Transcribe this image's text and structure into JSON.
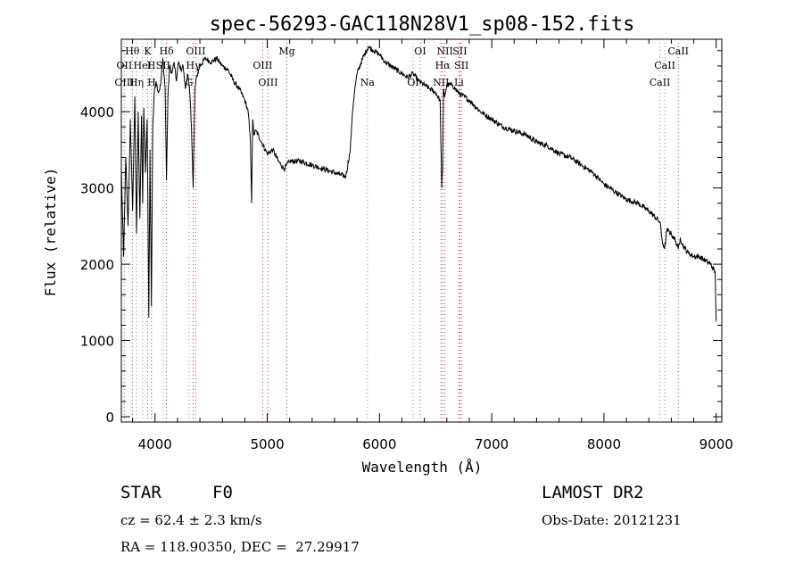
{
  "chart_data": {
    "type": "line",
    "title": "spec-56293-GAC118N28V1_sp08-152.fits",
    "xlabel": "Wavelength (Å)",
    "ylabel": "Flux (relative)",
    "xlim": [
      3700,
      9050
    ],
    "ylim": [
      -70,
      4950
    ],
    "xticks": [
      4000,
      5000,
      6000,
      7000,
      8000,
      9000
    ],
    "yticks": [
      0,
      1000,
      2000,
      3000,
      4000
    ],
    "grid": false,
    "series": [
      {
        "x": [
          3700,
          3720,
          3740,
          3760,
          3780,
          3800,
          3820,
          3835,
          3850,
          3865,
          3880,
          3890,
          3900,
          3915,
          3930,
          3945,
          3955,
          3968,
          3980,
          3995,
          4010,
          4030,
          4050,
          4070,
          4090,
          4102,
          4115,
          4130,
          4150,
          4170,
          4190,
          4210,
          4230,
          4250,
          4270,
          4290,
          4310,
          4325,
          4340,
          4355,
          4370,
          4400,
          4450,
          4500,
          4550,
          4600,
          4650,
          4700,
          4750,
          4800,
          4830,
          4850,
          4861,
          4870,
          4880,
          4900,
          4950,
          5000,
          5050,
          5100,
          5150,
          5200,
          5300,
          5400,
          5500,
          5600,
          5700,
          5740,
          5760,
          5780,
          5800,
          5850,
          5900,
          5950,
          6000,
          6050,
          6100,
          6150,
          6200,
          6250,
          6300,
          6350,
          6400,
          6450,
          6500,
          6540,
          6555,
          6563,
          6570,
          6580,
          6600,
          6650,
          6700,
          6800,
          6900,
          7000,
          7100,
          7200,
          7300,
          7400,
          7500,
          7600,
          7700,
          7800,
          7900,
          8000,
          8100,
          8200,
          8300,
          8400,
          8500,
          8520,
          8540,
          8560,
          8600,
          8640,
          8662,
          8680,
          8700,
          8750,
          8800,
          8850,
          8900,
          8950,
          8990,
          9000
        ],
        "y": [
          3250,
          2100,
          3400,
          2500,
          3900,
          2700,
          4200,
          2400,
          4000,
          2600,
          3950,
          2800,
          4050,
          3200,
          3900,
          1300,
          3500,
          1450,
          3800,
          4300,
          4400,
          4250,
          4350,
          4700,
          4300,
          3100,
          4200,
          4600,
          4500,
          4650,
          4400,
          4650,
          4550,
          4600,
          4300,
          4500,
          4250,
          3800,
          3000,
          4300,
          4450,
          4600,
          4700,
          4650,
          4700,
          4600,
          4550,
          4400,
          4300,
          4150,
          4000,
          3600,
          2800,
          3900,
          3700,
          3750,
          3600,
          3450,
          3500,
          3350,
          3250,
          3350,
          3350,
          3300,
          3250,
          3200,
          3150,
          3500,
          4000,
          4300,
          4500,
          4700,
          4850,
          4800,
          4750,
          4650,
          4600,
          4550,
          4500,
          4450,
          4500,
          4400,
          4350,
          4300,
          4250,
          4150,
          3000,
          3250,
          4300,
          4200,
          4350,
          4350,
          4250,
          4150,
          4000,
          3900,
          3800,
          3750,
          3700,
          3600,
          3550,
          3450,
          3400,
          3300,
          3200,
          3050,
          2950,
          2850,
          2800,
          2700,
          2550,
          2300,
          2200,
          2450,
          2400,
          2300,
          2200,
          2350,
          2250,
          2150,
          2100,
          2100,
          2050,
          2000,
          1900,
          1250
        ]
      }
    ],
    "lines": [
      {
        "label": "Hθ",
        "x": 3798,
        "row": 0,
        "style": "red"
      },
      {
        "label": "K",
        "x": 3934,
        "row": 0,
        "style": "red"
      },
      {
        "label": "Hδ",
        "x": 4102,
        "row": 0,
        "style": "red"
      },
      {
        "label": "OIII",
        "x": 4363,
        "row": 0,
        "style": "red"
      },
      {
        "label": "Mg",
        "x": 5175,
        "row": 0,
        "style": "red"
      },
      {
        "label": "OI",
        "x": 6363,
        "row": 0,
        "style": "red"
      },
      {
        "label": "NII",
        "x": 6583,
        "row": 0,
        "style": "red"
      },
      {
        "label": "SII",
        "x": 6717,
        "row": 0,
        "style": "red"
      },
      {
        "label": "CaII",
        "x": 8662,
        "row": 0,
        "style": "red"
      },
      {
        "label": "OII",
        "x": 3727,
        "row": 1,
        "style": "grey"
      },
      {
        "label": "HeI",
        "x": 3889,
        "row": 1,
        "style": "grey"
      },
      {
        "label": "H",
        "x": 3968,
        "row": 1,
        "style": "red"
      },
      {
        "label": "SII",
        "x": 4072,
        "row": 1,
        "style": "grey"
      },
      {
        "label": "Hγ",
        "x": 4340,
        "row": 1,
        "style": "red"
      },
      {
        "label": "OIII",
        "x": 4959,
        "row": 1,
        "style": "red"
      },
      {
        "label": "Hα",
        "x": 6563,
        "row": 1,
        "style": "red"
      },
      {
        "label": "SII",
        "x": 6731,
        "row": 1,
        "style": "red"
      },
      {
        "label": "CaII",
        "x": 8542,
        "row": 1,
        "style": "grey"
      },
      {
        "label": "OIII",
        "x": 3727,
        "row": 2,
        "style": "grey"
      },
      {
        "label": "Hη",
        "x": 3835,
        "row": 2,
        "style": "grey"
      },
      {
        "label": "H",
        "x": 3970,
        "row": 2,
        "style": "grey"
      },
      {
        "label": "G",
        "x": 4304,
        "row": 2,
        "style": "grey"
      },
      {
        "label": "OIII",
        "x": 5007,
        "row": 2,
        "style": "red"
      },
      {
        "label": "Na",
        "x": 5893,
        "row": 2,
        "style": "grey"
      },
      {
        "label": "OI",
        "x": 6300,
        "row": 2,
        "style": "grey"
      },
      {
        "label": "NII",
        "x": 6548,
        "row": 2,
        "style": "red"
      },
      {
        "label": "Li",
        "x": 6708,
        "row": 2,
        "style": "red"
      },
      {
        "label": "CaII",
        "x": 8498,
        "row": 2,
        "style": "grey"
      }
    ]
  },
  "info": {
    "object_class": "STAR",
    "subclass": "F0",
    "survey": "LAMOST DR2",
    "cz": "cz = 62.4 ± 2.3 km/s",
    "obs_date": "Obs-Date: 20121231",
    "coords": "RA = 118.90350, DEC =  27.29917"
  }
}
